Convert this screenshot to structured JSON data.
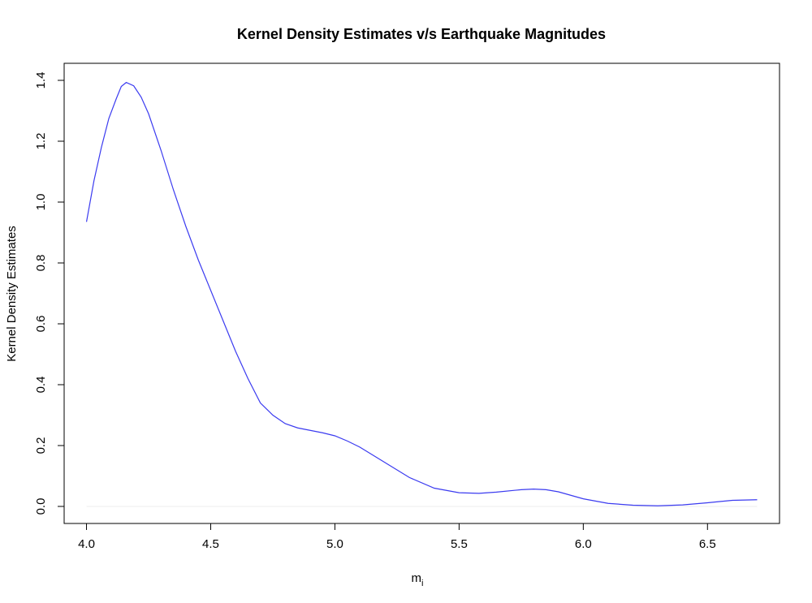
{
  "chart_data": {
    "type": "line",
    "title": "Kernel Density Estimates v/s Earthquake Magnitudes",
    "xlabel": "m",
    "xlabel_subscript": "i",
    "ylabel": "Kernel Density Estimates",
    "xlim": [
      3.91,
      6.79
    ],
    "ylim": [
      -0.056,
      1.456
    ],
    "x_ticks": [
      4.0,
      4.5,
      5.0,
      5.5,
      6.0,
      6.5
    ],
    "x_tick_labels": [
      "4.0",
      "4.5",
      "5.0",
      "5.5",
      "6.0",
      "6.5"
    ],
    "y_ticks": [
      0.0,
      0.2,
      0.4,
      0.6,
      0.8,
      1.0,
      1.2,
      1.4
    ],
    "y_tick_labels": [
      "0.0",
      "0.2",
      "0.4",
      "0.6",
      "0.8",
      "1.0",
      "1.2",
      "1.4"
    ],
    "grid": false,
    "baseline": 0.0,
    "colors": {
      "line": "#3b3bf0",
      "baseline": "#eeeeee",
      "axis": "#000000"
    },
    "series": [
      {
        "x": [
          4.0,
          4.03,
          4.06,
          4.09,
          4.12,
          4.14,
          4.16,
          4.19,
          4.22,
          4.25,
          4.3,
          4.35,
          4.4,
          4.45,
          4.5,
          4.55,
          4.6,
          4.65,
          4.7,
          4.75,
          4.8,
          4.85,
          4.9,
          4.95,
          5.0,
          5.05,
          5.1,
          5.15,
          5.2,
          5.3,
          5.4,
          5.5,
          5.58,
          5.65,
          5.75,
          5.8,
          5.85,
          5.9,
          6.0,
          6.1,
          6.2,
          6.3,
          6.4,
          6.5,
          6.6,
          6.7
        ],
        "y": [
          0.935,
          1.07,
          1.18,
          1.275,
          1.34,
          1.38,
          1.393,
          1.382,
          1.345,
          1.29,
          1.17,
          1.04,
          0.92,
          0.81,
          0.71,
          0.61,
          0.51,
          0.42,
          0.34,
          0.3,
          0.272,
          0.258,
          0.25,
          0.242,
          0.232,
          0.215,
          0.195,
          0.17,
          0.145,
          0.095,
          0.06,
          0.045,
          0.043,
          0.047,
          0.055,
          0.057,
          0.055,
          0.048,
          0.025,
          0.01,
          0.004,
          0.002,
          0.005,
          0.012,
          0.02,
          0.022
        ]
      }
    ]
  }
}
